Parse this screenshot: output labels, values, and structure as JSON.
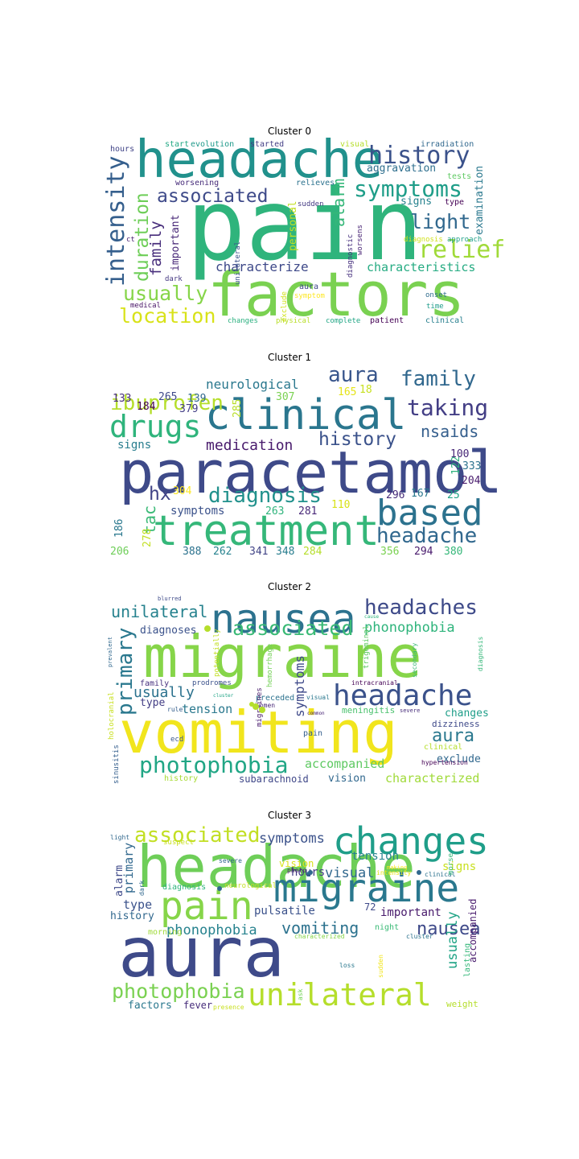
{
  "clusters": [
    {
      "title": "Cluster 0",
      "words": [
        {
          "text": "pain",
          "color": "#2fb47c"
        },
        {
          "text": "factors",
          "color": "#7ad151"
        },
        {
          "text": "headache",
          "color": "#21918c"
        },
        {
          "text": "history",
          "color": "#3b528b"
        },
        {
          "text": "symptoms",
          "color": "#1f9e89"
        },
        {
          "text": "associated",
          "color": "#3e4a89"
        },
        {
          "text": "intensity",
          "color": "#355f8d"
        },
        {
          "text": "duration",
          "color": "#6ece58"
        },
        {
          "text": "family",
          "color": "#472d7b"
        },
        {
          "text": "light",
          "color": "#31688e"
        },
        {
          "text": "relief",
          "color": "#a0da39"
        },
        {
          "text": "usually",
          "color": "#86d549"
        },
        {
          "text": "location",
          "color": "#d8e219"
        },
        {
          "text": "characterize",
          "color": "#3e4989"
        },
        {
          "text": "characteristics",
          "color": "#25ab82"
        },
        {
          "text": "alarm",
          "color": "#35b779"
        },
        {
          "text": "examination",
          "color": "#2a788e"
        },
        {
          "text": "aggravation",
          "color": "#2e6f8e"
        },
        {
          "text": "important",
          "color": "#482878"
        },
        {
          "text": "personal",
          "color": "#c2df23"
        },
        {
          "text": "start",
          "color": "#22a884"
        },
        {
          "text": "evolution",
          "color": "#1f9a8a"
        },
        {
          "text": "started",
          "color": "#433e85"
        },
        {
          "text": "visual",
          "color": "#b5de2b"
        },
        {
          "text": "irradiation",
          "color": "#31688e"
        },
        {
          "text": "hours",
          "color": "#414487"
        },
        {
          "text": "tests",
          "color": "#5ec962"
        },
        {
          "text": "type",
          "color": "#440154"
        },
        {
          "text": "signs",
          "color": "#26828e"
        },
        {
          "text": "worsening",
          "color": "#472c7a"
        },
        {
          "text": "relieves",
          "color": "#2c728e"
        },
        {
          "text": "sudden",
          "color": "#443a83"
        },
        {
          "text": "unilateral",
          "color": "#3b528b"
        },
        {
          "text": "diagnostic",
          "color": "#46307e"
        },
        {
          "text": "worsens",
          "color": "#482475"
        },
        {
          "text": "diagnosis",
          "color": "#d0e11c"
        },
        {
          "text": "approach",
          "color": "#1fa088"
        },
        {
          "text": "ct",
          "color": "#482173"
        },
        {
          "text": "dark",
          "color": "#453882"
        },
        {
          "text": "aura",
          "color": "#3f4788"
        },
        {
          "text": "symptom",
          "color": "#fde725"
        },
        {
          "text": "onset",
          "color": "#2f6c8e"
        },
        {
          "text": "time",
          "color": "#1e9b8a"
        },
        {
          "text": "medical",
          "color": "#471365"
        },
        {
          "text": "exclude",
          "color": "#d2e21b"
        },
        {
          "text": "changes",
          "color": "#2ab07f"
        },
        {
          "text": "physical",
          "color": "#b8de29"
        },
        {
          "text": "complete",
          "color": "#21a685"
        },
        {
          "text": "patient",
          "color": "#440154"
        },
        {
          "text": "clinical",
          "color": "#277f8e"
        }
      ]
    },
    {
      "title": "Cluster 1",
      "words": [
        {
          "text": "paracetamol",
          "color": "#3e4a89"
        },
        {
          "text": "clinical",
          "color": "#2a768e"
        },
        {
          "text": "treatment",
          "color": "#35b779"
        },
        {
          "text": "drugs",
          "color": "#2fb47c"
        },
        {
          "text": "based",
          "color": "#2c728e"
        },
        {
          "text": "ibuprofen",
          "color": "#b5de2b"
        },
        {
          "text": "aura",
          "color": "#39568c"
        },
        {
          "text": "family",
          "color": "#31688e"
        },
        {
          "text": "taking",
          "color": "#433e85"
        },
        {
          "text": "history",
          "color": "#3b528b"
        },
        {
          "text": "medication",
          "color": "#481a6c"
        },
        {
          "text": "neurological",
          "color": "#2a788e"
        },
        {
          "text": "diagnosis",
          "color": "#21918c"
        },
        {
          "text": "headache",
          "color": "#31688e"
        },
        {
          "text": "nsaids",
          "color": "#355f8d"
        },
        {
          "text": "hx",
          "color": "#414487"
        },
        {
          "text": "tac",
          "color": "#3aba76"
        },
        {
          "text": "signs",
          "color": "#287d8e"
        },
        {
          "text": "symptoms",
          "color": "#3b528b"
        },
        {
          "text": "133",
          "color": "#472d7b"
        },
        {
          "text": "184",
          "color": "#440154"
        },
        {
          "text": "265",
          "color": "#3e4989"
        },
        {
          "text": "139",
          "color": "#31688e"
        },
        {
          "text": "379",
          "color": "#433e85"
        },
        {
          "text": "285",
          "color": "#b8de29"
        },
        {
          "text": "307",
          "color": "#7ad151"
        },
        {
          "text": "165",
          "color": "#e5e419"
        },
        {
          "text": "18",
          "color": "#c8e020"
        },
        {
          "text": "100",
          "color": "#482878"
        },
        {
          "text": "122",
          "color": "#2db27d"
        },
        {
          "text": "333",
          "color": "#2c728e"
        },
        {
          "text": "204",
          "color": "#481b6d"
        },
        {
          "text": "296",
          "color": "#472c7a"
        },
        {
          "text": "167",
          "color": "#2a788e"
        },
        {
          "text": "25",
          "color": "#20a486"
        },
        {
          "text": "304",
          "color": "#fde725"
        },
        {
          "text": "263",
          "color": "#2fb47c"
        },
        {
          "text": "281",
          "color": "#482878"
        },
        {
          "text": "110",
          "color": "#d8e219"
        },
        {
          "text": "186",
          "color": "#2a788e"
        },
        {
          "text": "278",
          "color": "#c2df23"
        },
        {
          "text": "206",
          "color": "#6ece58"
        },
        {
          "text": "388",
          "color": "#2c728e"
        },
        {
          "text": "262",
          "color": "#26828e"
        },
        {
          "text": "341",
          "color": "#414487"
        },
        {
          "text": "348",
          "color": "#287d8e"
        },
        {
          "text": "284",
          "color": "#b5de2b"
        },
        {
          "text": "356",
          "color": "#7ad151"
        },
        {
          "text": "294",
          "color": "#481a6c"
        },
        {
          "text": "380",
          "color": "#35b779"
        }
      ]
    },
    {
      "title": "Cluster 2",
      "words": [
        {
          "text": "migraine",
          "color": "#86d549"
        },
        {
          "text": "vomiting",
          "color": "#f1e51d"
        },
        {
          "text": "nausea",
          "color": "#2c728e"
        },
        {
          "text": "headaches",
          "color": "#3e4a89"
        },
        {
          "text": "headache",
          "color": "#3b528b"
        },
        {
          "text": "photophobia",
          "color": "#21a685"
        },
        {
          "text": "associated",
          "color": "#3aba76"
        },
        {
          "text": "unilateral",
          "color": "#26828e"
        },
        {
          "text": "phonophobia",
          "color": "#2fb47c"
        },
        {
          "text": "primary",
          "color": "#2a788e"
        },
        {
          "text": "usually",
          "color": "#2c728e"
        },
        {
          "text": "symptoms",
          "color": "#3e4989"
        },
        {
          "text": "aura",
          "color": "#2a788e"
        },
        {
          "text": "tension",
          "color": "#2a788e"
        },
        {
          "text": "accompanied",
          "color": "#5ec962"
        },
        {
          "text": "characterized",
          "color": "#a0da39"
        },
        {
          "text": "diagnoses",
          "color": "#3b528b"
        },
        {
          "text": "exclude",
          "color": "#31688e"
        },
        {
          "text": "changes",
          "color": "#1f9e89"
        },
        {
          "text": "vision",
          "color": "#31688e"
        },
        {
          "text": "subarachnoid",
          "color": "#3f4788"
        },
        {
          "text": "meningitis",
          "color": "#4ac16d"
        },
        {
          "text": "dizziness",
          "color": "#3e4989"
        },
        {
          "text": "type",
          "color": "#433e85"
        },
        {
          "text": "family",
          "color": "#46307e"
        },
        {
          "text": "rule",
          "color": "#355f8d"
        },
        {
          "text": "prodromes",
          "color": "#3b528b"
        },
        {
          "text": "preceded",
          "color": "#2c728e"
        },
        {
          "text": "women",
          "color": "#482878"
        },
        {
          "text": "pain",
          "color": "#355f8d"
        },
        {
          "text": "potentially",
          "color": "#c2df23"
        },
        {
          "text": "hemorrhage",
          "color": "#73d056"
        },
        {
          "text": "migraines",
          "color": "#481a6c"
        },
        {
          "text": "trigeminal",
          "color": "#5ec962"
        },
        {
          "text": "intracranial",
          "color": "#440154"
        },
        {
          "text": "secondary",
          "color": "#3aba76"
        },
        {
          "text": "diagnosis",
          "color": "#35b779"
        },
        {
          "text": "severe",
          "color": "#472c7a"
        },
        {
          "text": "clinical",
          "color": "#b5de2b"
        },
        {
          "text": "hypertension",
          "color": "#440154"
        },
        {
          "text": "cluster",
          "color": "#20a486"
        },
        {
          "text": "visual",
          "color": "#2a788e"
        },
        {
          "text": "common",
          "color": "#482475"
        },
        {
          "text": "cause",
          "color": "#2fb47c"
        },
        {
          "text": "blurred",
          "color": "#3e4a89"
        },
        {
          "text": "prevalent",
          "color": "#31688e"
        },
        {
          "text": "holocranial",
          "color": "#c8e020"
        },
        {
          "text": "sinusitis",
          "color": "#355f8d"
        },
        {
          "text": "ecd",
          "color": "#39568c"
        },
        {
          "text": "history",
          "color": "#a8db34"
        }
      ]
    },
    {
      "title": "Cluster 3",
      "words": [
        {
          "text": "headache",
          "color": "#6ece58"
        },
        {
          "text": "aura",
          "color": "#3e4a89"
        },
        {
          "text": "changes",
          "color": "#1f9e89"
        },
        {
          "text": "migraine",
          "color": "#2a788e"
        },
        {
          "text": "pain",
          "color": "#86d549"
        },
        {
          "text": "unilateral",
          "color": "#b5de2b"
        },
        {
          "text": "associated",
          "color": "#c2df23"
        },
        {
          "text": "photophobia",
          "color": "#7ad151"
        },
        {
          "text": "symptoms",
          "color": "#3b528b"
        },
        {
          "text": "vomiting",
          "color": "#2c728e"
        },
        {
          "text": "phonophobia",
          "color": "#26828e"
        },
        {
          "text": "nausea",
          "color": "#3e4989"
        },
        {
          "text": "visual",
          "color": "#31688e"
        },
        {
          "text": "hours",
          "color": "#433e85"
        },
        {
          "text": "tension",
          "color": "#26828e"
        },
        {
          "text": "vision",
          "color": "#d8e219"
        },
        {
          "text": "signs",
          "color": "#c8e020"
        },
        {
          "text": "pulsatile",
          "color": "#3b528b"
        },
        {
          "text": "important",
          "color": "#481a6c"
        },
        {
          "text": "usually",
          "color": "#20a486"
        },
        {
          "text": "accompanied",
          "color": "#481b6d"
        },
        {
          "text": "lasting",
          "color": "#35b779"
        },
        {
          "text": "primary",
          "color": "#31688e"
        },
        {
          "text": "alarm",
          "color": "#3e4989"
        },
        {
          "text": "type",
          "color": "#3b528b"
        },
        {
          "text": "history",
          "color": "#31688e"
        },
        {
          "text": "factors",
          "color": "#2a788e"
        },
        {
          "text": "fever",
          "color": "#472d7b"
        },
        {
          "text": "weight",
          "color": "#b5de2b"
        },
        {
          "text": "morning",
          "color": "#a0da39"
        },
        {
          "text": "night",
          "color": "#3aba76"
        },
        {
          "text": "diagnosis",
          "color": "#2fb47c"
        },
        {
          "text": "neurological",
          "color": "#c2df23"
        },
        {
          "text": "72",
          "color": "#3e4989"
        },
        {
          "text": "light",
          "color": "#31688e"
        },
        {
          "text": "suspect",
          "color": "#c8e020"
        },
        {
          "text": "severe",
          "color": "#31688e"
        },
        {
          "text": "photo",
          "color": "#481a6c"
        },
        {
          "text": "making",
          "color": "#fde725"
        },
        {
          "text": "intensity",
          "color": "#e5e419"
        },
        {
          "text": "clinical",
          "color": "#2c728e"
        },
        {
          "text": "morse",
          "color": "#35b779"
        },
        {
          "text": "dark",
          "color": "#31688e"
        },
        {
          "text": "characterized",
          "color": "#86d549"
        },
        {
          "text": "cluster",
          "color": "#2c728e"
        },
        {
          "text": "loss",
          "color": "#2a788e"
        },
        {
          "text": "sudden",
          "color": "#f1e51d"
        },
        {
          "text": "ask",
          "color": "#73d056"
        },
        {
          "text": "presence",
          "color": "#c8e020"
        }
      ]
    }
  ]
}
